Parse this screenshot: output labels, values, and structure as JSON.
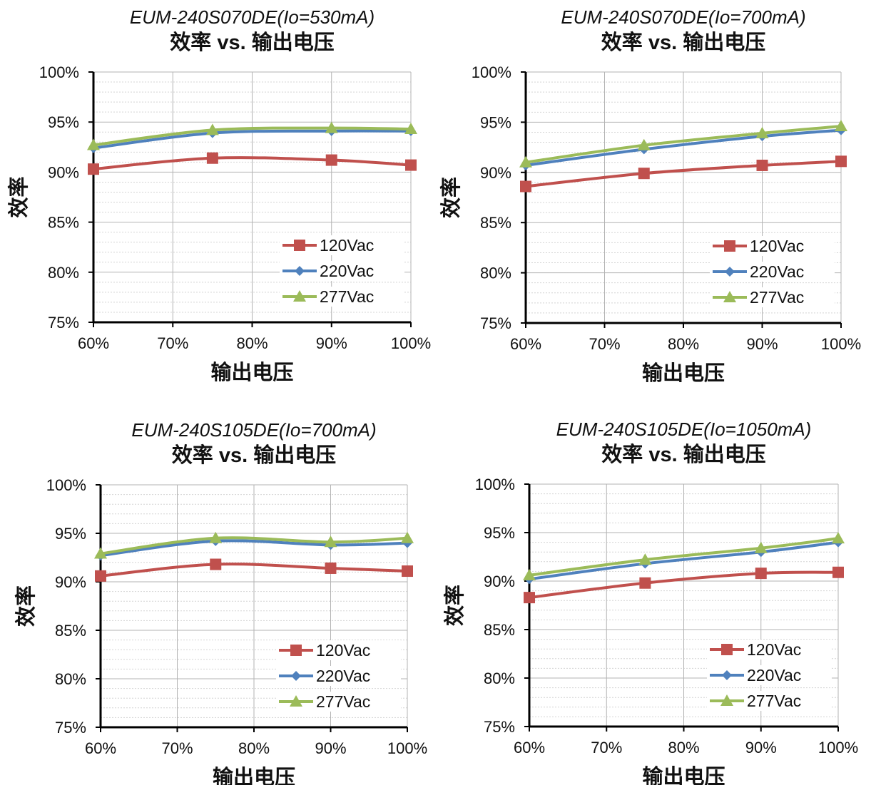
{
  "charts": [
    {
      "title": "EUM-240S070DE(Io=530mA)",
      "subtitle": "效率 vs. 输出电压",
      "xlabel": "输出电压",
      "ylabel": "效率",
      "x_ticks": [
        "60%",
        "70%",
        "80%",
        "90%",
        "100%"
      ],
      "y_ticks": [
        "100%",
        "95%",
        "90%",
        "85%",
        "80%",
        "75%"
      ]
    },
    {
      "title": "EUM-240S070DE(Io=700mA)",
      "subtitle": "效率 vs. 输出电压",
      "xlabel": "输出电压",
      "ylabel": "效率",
      "x_ticks": [
        "60%",
        "70%",
        "80%",
        "90%",
        "100%"
      ],
      "y_ticks": [
        "100%",
        "95%",
        "90%",
        "85%",
        "80%",
        "75%"
      ]
    },
    {
      "title": "EUM-240S105DE(Io=700mA)",
      "subtitle": "效率 vs. 输出电压",
      "xlabel": "输出电压",
      "ylabel": "效率",
      "x_ticks": [
        "60%",
        "70%",
        "80%",
        "90%",
        "100%"
      ],
      "y_ticks": [
        "100%",
        "95%",
        "90%",
        "85%",
        "80%",
        "75%"
      ]
    },
    {
      "title": "EUM-240S105DE(Io=1050mA)",
      "subtitle": "效率 vs. 输出电压",
      "xlabel": "输出电压",
      "ylabel": "效率",
      "x_ticks": [
        "60%",
        "70%",
        "80%",
        "90%",
        "100%"
      ],
      "y_ticks": [
        "100%",
        "95%",
        "90%",
        "85%",
        "80%",
        "75%"
      ]
    }
  ],
  "chart_data": [
    {
      "type": "line",
      "title": "EUM-240S070DE(Io=530mA)",
      "subtitle": "效率 vs. 输出电压",
      "xlabel": "输出电压",
      "ylabel": "效率",
      "x": [
        60,
        75,
        90,
        100
      ],
      "xlim": [
        60,
        100
      ],
      "ylim": [
        75,
        100
      ],
      "grid": true,
      "legend": "bottom-right",
      "series": [
        {
          "name": "120Vac",
          "color": "#c0504d",
          "marker": "square",
          "values": [
            90.3,
            91.4,
            91.2,
            90.7
          ]
        },
        {
          "name": "220Vac",
          "color": "#4f81bd",
          "marker": "diamond",
          "values": [
            92.4,
            93.9,
            94.1,
            94.1
          ]
        },
        {
          "name": "277Vac",
          "color": "#9bbb59",
          "marker": "triangle",
          "values": [
            92.7,
            94.2,
            94.4,
            94.3
          ]
        }
      ]
    },
    {
      "type": "line",
      "title": "EUM-240S070DE(Io=700mA)",
      "subtitle": "效率 vs. 输出电压",
      "xlabel": "输出电压",
      "ylabel": "效率",
      "x": [
        60,
        75,
        90,
        100
      ],
      "xlim": [
        60,
        100
      ],
      "ylim": [
        75,
        100
      ],
      "grid": true,
      "legend": "bottom-right",
      "series": [
        {
          "name": "120Vac",
          "color": "#c0504d",
          "marker": "square",
          "values": [
            88.6,
            89.9,
            90.7,
            91.1
          ]
        },
        {
          "name": "220Vac",
          "color": "#4f81bd",
          "marker": "diamond",
          "values": [
            90.7,
            92.3,
            93.6,
            94.2
          ]
        },
        {
          "name": "277Vac",
          "color": "#9bbb59",
          "marker": "triangle",
          "values": [
            91.0,
            92.7,
            93.9,
            94.6
          ]
        }
      ]
    },
    {
      "type": "line",
      "title": "EUM-240S105DE(Io=700mA)",
      "subtitle": "效率 vs. 输出电压",
      "xlabel": "输出电压",
      "ylabel": "效率",
      "x": [
        60,
        75,
        90,
        100
      ],
      "xlim": [
        60,
        100
      ],
      "ylim": [
        75,
        100
      ],
      "grid": true,
      "legend": "bottom-right",
      "series": [
        {
          "name": "120Vac",
          "color": "#c0504d",
          "marker": "square",
          "values": [
            90.6,
            91.8,
            91.4,
            91.1
          ]
        },
        {
          "name": "220Vac",
          "color": "#4f81bd",
          "marker": "diamond",
          "values": [
            92.7,
            94.2,
            93.8,
            94.0
          ]
        },
        {
          "name": "277Vac",
          "color": "#9bbb59",
          "marker": "triangle",
          "values": [
            92.9,
            94.5,
            94.1,
            94.5
          ]
        }
      ]
    },
    {
      "type": "line",
      "title": "EUM-240S105DE(Io=1050mA)",
      "subtitle": "效率 vs. 输出电压",
      "xlabel": "输出电压",
      "ylabel": "效率",
      "x": [
        60,
        75,
        90,
        100
      ],
      "xlim": [
        60,
        100
      ],
      "ylim": [
        75,
        100
      ],
      "grid": true,
      "legend": "bottom-right",
      "series": [
        {
          "name": "120Vac",
          "color": "#c0504d",
          "marker": "square",
          "values": [
            88.3,
            89.8,
            90.8,
            90.9
          ]
        },
        {
          "name": "220Vac",
          "color": "#4f81bd",
          "marker": "diamond",
          "values": [
            90.2,
            91.8,
            93.0,
            94.0
          ]
        },
        {
          "name": "277Vac",
          "color": "#9bbb59",
          "marker": "triangle",
          "values": [
            90.6,
            92.2,
            93.4,
            94.4
          ]
        }
      ]
    }
  ]
}
